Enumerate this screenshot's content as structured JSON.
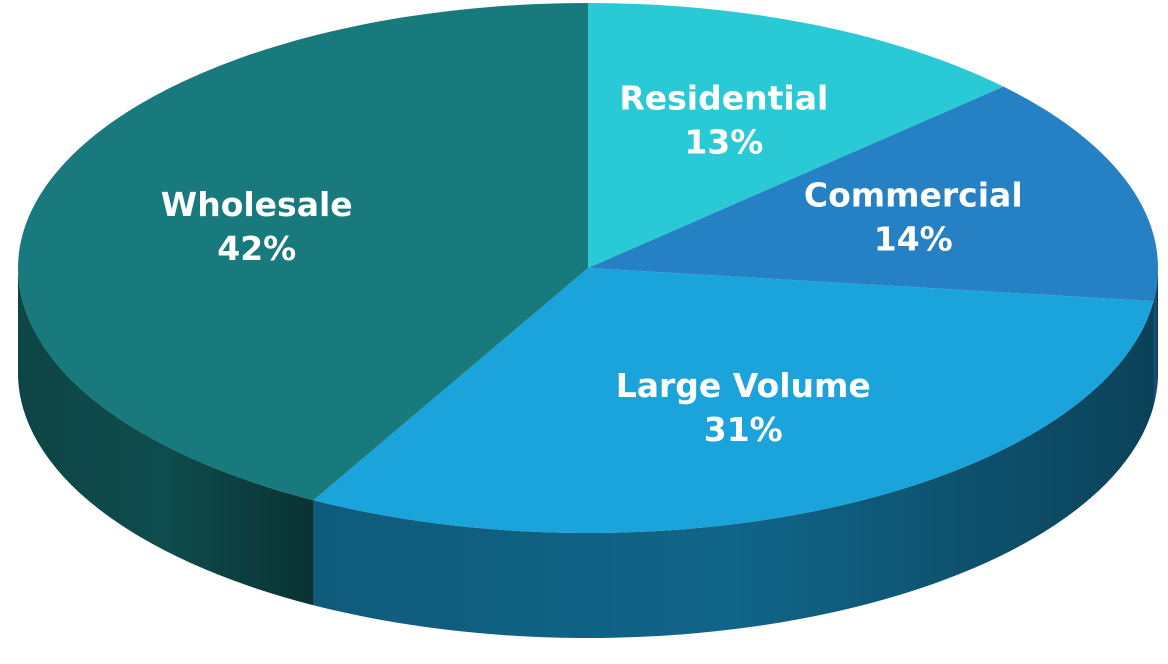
{
  "chart_data": {
    "type": "pie",
    "three_d": true,
    "categories": [
      "Residential",
      "Commercial",
      "Large Volume",
      "Wholesale"
    ],
    "values": [
      13,
      14,
      31,
      42
    ],
    "value_labels": [
      "13%",
      "14%",
      "31%",
      "42%"
    ],
    "colors": [
      "#29c9d6",
      "#2680c4",
      "#1ba3db",
      "#187a7c"
    ]
  }
}
